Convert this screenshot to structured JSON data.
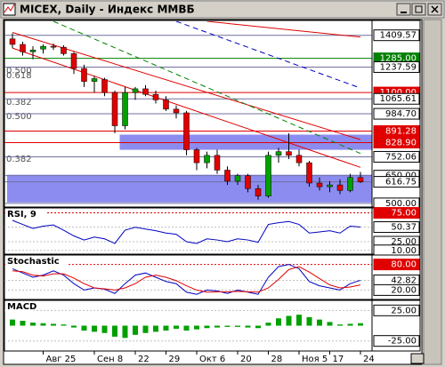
{
  "chart_data": [
    {
      "type": "candlestick",
      "title": "MICEX, Daily - Индекс ММВБ",
      "categories": [
        null,
        null,
        null,
        "Авг 25",
        null,
        null,
        null,
        null,
        "Сен 8",
        null,
        null,
        null,
        "22",
        null,
        null,
        "29",
        null,
        null,
        "Окт 6",
        null,
        null,
        null,
        "20",
        null,
        null,
        "28",
        null,
        null,
        "Ноя 5",
        null,
        null,
        "17",
        null,
        null,
        "24"
      ],
      "open": [
        1390,
        1360,
        1320,
        1335,
        1350,
        1345,
        1310,
        1230,
        1160,
        1170,
        1100,
        920,
        1100,
        1120,
        1090,
        1060,
        1010,
        990,
        790,
        720,
        760,
        680,
        620,
        650,
        580,
        540,
        760,
        780,
        760,
        720,
        610,
        590,
        600,
        570,
        640
      ],
      "high": [
        1420,
        1375,
        1350,
        1360,
        1365,
        1355,
        1320,
        1250,
        1190,
        1180,
        1110,
        1130,
        1130,
        1140,
        1110,
        1080,
        1030,
        1000,
        800,
        780,
        790,
        700,
        660,
        660,
        600,
        780,
        800,
        880,
        790,
        730,
        640,
        620,
        630,
        660,
        670
      ],
      "low": [
        1340,
        1300,
        1280,
        1310,
        1330,
        1300,
        1200,
        1130,
        1100,
        1080,
        880,
        900,
        1060,
        1080,
        1040,
        1000,
        960,
        760,
        680,
        690,
        660,
        600,
        600,
        560,
        520,
        530,
        720,
        740,
        700,
        590,
        570,
        560,
        550,
        560,
        610
      ],
      "close": [
        1360,
        1320,
        1330,
        1350,
        1345,
        1310,
        1230,
        1160,
        1175,
        1100,
        920,
        1100,
        1120,
        1090,
        1060,
        1010,
        990,
        790,
        720,
        760,
        680,
        620,
        650,
        580,
        540,
        760,
        780,
        760,
        720,
        610,
        590,
        600,
        570,
        640,
        616.75
      ],
      "up_color": "#00a000",
      "down_color": "#e00000",
      "ylim": [
        485,
        1485
      ],
      "yticks": [
        1409.57,
        {
          "value": 1285,
          "label": "1285.00"
        },
        1237.59,
        {
          "value": 1100,
          "label": "1100.00"
        },
        1065.61,
        {
          "value": 984.7,
          "label": "984.70"
        },
        891.28,
        {
          "value": 828.9,
          "label": "828.90"
        },
        752.06,
        {
          "value": 650,
          "label": "650.00"
        },
        616.75,
        {
          "value": 500,
          "label": "500.00"
        }
      ],
      "ytick_colors": [
        "#ffffff",
        "#008000",
        "#ffffff",
        "#e00000",
        "#ffffff",
        "#ffffff",
        "#e00000",
        "#e00000",
        "#ffffff",
        "#ffffff",
        "#ffffff",
        "#ffffff"
      ],
      "zones": [
        {
          "low": 790,
          "high": 872,
          "start": 11,
          "color": "#8c8cf0"
        },
        {
          "low": 505,
          "high": 655,
          "start": 0,
          "color": "#8c8cf0"
        }
      ],
      "trendlines": [
        {
          "color": "#e00000",
          "dash": false,
          "from": [
            19,
            1485
          ],
          "to": [
            34,
            1400
          ]
        },
        {
          "color": "#e00000",
          "dash": false,
          "from": [
            0,
            1425
          ],
          "to": [
            34,
            845
          ]
        },
        {
          "color": "#e00000",
          "dash": false,
          "from": [
            0,
            1340
          ],
          "to": [
            34,
            695
          ]
        },
        {
          "color": "#008000",
          "dash": true,
          "from": [
            4,
            1485
          ],
          "to": [
            34,
            770
          ]
        },
        {
          "color": "#0000c0",
          "dash": true,
          "from": [
            16,
            1485
          ],
          "to": [
            34,
            1124
          ]
        }
      ],
      "annotations": [
        {
          "text": "0.500",
          "y": 1193
        },
        {
          "text": "0.618",
          "y": 1168
        },
        {
          "text": "0.382",
          "y": 1023
        },
        {
          "text": "0.500",
          "y": 947
        },
        {
          "text": "0.382",
          "y": 716
        }
      ]
    },
    {
      "type": "line",
      "title": "RSI, 9",
      "ylim": [
        5,
        82
      ],
      "yticks": [
        {
          "value": 75,
          "label": "75.00"
        },
        50.37,
        {
          "value": 25,
          "label": "25.00"
        },
        {
          "value": 10,
          "label": "10.00"
        }
      ],
      "ytick_colors": [
        "#e00000",
        "#ffffff",
        "#ffffff",
        "#ffffff"
      ],
      "series": [
        {
          "color": "#0000c0",
          "values": [
            62,
            55,
            48,
            52,
            54,
            45,
            35,
            28,
            33,
            30,
            22,
            45,
            50,
            47,
            44,
            40,
            38,
            25,
            22,
            30,
            28,
            25,
            30,
            28,
            24,
            55,
            58,
            60,
            55,
            40,
            42,
            44,
            40,
            52,
            50.37
          ]
        }
      ]
    },
    {
      "type": "line",
      "title": "Stochastic",
      "ylim": [
        0,
        100
      ],
      "yticks": [
        {
          "value": 80,
          "label": "80.00"
        },
        42.82,
        {
          "value": 20,
          "label": "20.00"
        }
      ],
      "ytick_colors": [
        "#e00000",
        "#ffffff",
        "#ffffff"
      ],
      "series": [
        {
          "color": "#0000c0",
          "values": [
            70,
            60,
            50,
            55,
            65,
            55,
            35,
            20,
            25,
            22,
            12,
            35,
            55,
            60,
            50,
            40,
            35,
            15,
            10,
            20,
            18,
            12,
            20,
            15,
            10,
            50,
            75,
            80,
            70,
            40,
            30,
            25,
            20,
            35,
            42.82
          ]
        },
        {
          "color": "#e00000",
          "values": [
            65,
            63,
            55,
            53,
            58,
            58,
            48,
            35,
            25,
            23,
            20,
            25,
            35,
            50,
            55,
            50,
            42,
            30,
            20,
            15,
            16,
            16,
            17,
            16,
            15,
            25,
            45,
            68,
            75,
            62,
            47,
            32,
            25,
            27,
            32
          ]
        }
      ]
    },
    {
      "type": "bar",
      "title": "MACD",
      "ylim": [
        -40,
        40
      ],
      "color": "#00a000",
      "yticks": [
        {
          "value": 25,
          "label": "25.00"
        },
        {
          "value": -25,
          "label": "-25.00"
        }
      ],
      "ytick_colors": [
        "#ffffff",
        "#ffffff"
      ],
      "values": [
        10,
        8,
        5,
        4,
        3,
        2,
        -3,
        -8,
        -10,
        -12,
        -18,
        -20,
        -15,
        -12,
        -10,
        -8,
        -5,
        -8,
        -6,
        -4,
        -3,
        -2,
        -2,
        -3,
        -4,
        5,
        12,
        16,
        18,
        14,
        10,
        6,
        2,
        3,
        4
      ]
    }
  ]
}
